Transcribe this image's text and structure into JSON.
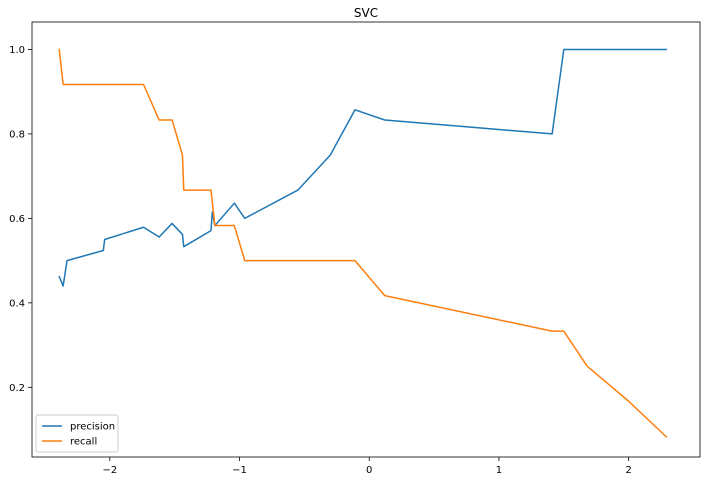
{
  "chart_data": {
    "type": "line",
    "title": "SVC",
    "xlabel": "",
    "ylabel": "",
    "xlim": [
      -2.6,
      2.55
    ],
    "ylim": [
      0.035,
      1.065
    ],
    "xticks": [
      -2,
      -1,
      0,
      1,
      2
    ],
    "xtick_labels": [
      "−2",
      "−1",
      "0",
      "1",
      "2"
    ],
    "yticks": [
      0.2,
      0.4,
      0.6,
      0.8,
      1.0
    ],
    "ytick_labels": [
      "0.2",
      "0.4",
      "0.6",
      "0.8",
      "1.0"
    ],
    "grid": false,
    "legend_position": "lower-left",
    "series": [
      {
        "name": "precision",
        "color": "#1f77b4",
        "x": [
          -2.39,
          -2.36,
          -2.33,
          -2.05,
          -2.04,
          -1.74,
          -1.62,
          -1.52,
          -1.44,
          -1.43,
          -1.22,
          -1.21,
          -1.19,
          -1.04,
          -0.96,
          -0.55,
          -0.3,
          -0.11,
          0.12,
          1.41,
          1.5,
          2.29
        ],
        "y": [
          0.462,
          0.44,
          0.5,
          0.524,
          0.55,
          0.579,
          0.556,
          0.588,
          0.562,
          0.533,
          0.571,
          0.615,
          0.583,
          0.636,
          0.6,
          0.667,
          0.75,
          0.857,
          0.833,
          0.8,
          1.0,
          1.0
        ]
      },
      {
        "name": "recall",
        "color": "#ff7f0e",
        "x": [
          -2.39,
          -2.36,
          -1.74,
          -1.62,
          -1.52,
          -1.44,
          -1.43,
          -1.22,
          -1.19,
          -1.04,
          -0.96,
          -0.11,
          0.12,
          1.41,
          1.5,
          1.68,
          2.0,
          2.29
        ],
        "y": [
          1.0,
          0.917,
          0.917,
          0.833,
          0.833,
          0.75,
          0.667,
          0.667,
          0.583,
          0.583,
          0.5,
          0.5,
          0.417,
          0.333,
          0.333,
          0.25,
          0.167,
          0.083
        ]
      }
    ]
  }
}
